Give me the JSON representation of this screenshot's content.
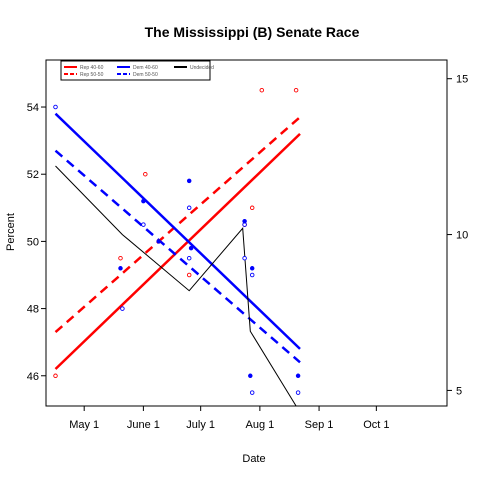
{
  "chart_data": {
    "type": "line",
    "title": "The Mississippi (B) Senate Race",
    "xlabel": "Date",
    "ylabel": "Percent",
    "x_tick_labels": [
      "May 1",
      "June 1",
      "July 1",
      "Aug 1",
      "Sep 1",
      "Oct 1"
    ],
    "x_tick_days": [
      0,
      31,
      61,
      92,
      123,
      153
    ],
    "xlim_days": [
      -20,
      190
    ],
    "ylim": [
      45.1,
      55.4
    ],
    "y_ticks": [
      46,
      48,
      50,
      52,
      54
    ],
    "y2lim": [
      4.5,
      15.6
    ],
    "y2_ticks": [
      5,
      10,
      15
    ],
    "legend_position": "top-left",
    "legend": [
      {
        "label": "Rep 40-60",
        "color": "#ff0000",
        "dash": "solid"
      },
      {
        "label": "Rep 50-50",
        "color": "#ff0000",
        "dash": "dashed"
      },
      {
        "label": "Dem 40-60",
        "color": "#0000ff",
        "dash": "solid"
      },
      {
        "label": "Dem 50-50",
        "color": "#0000ff",
        "dash": "dashed"
      },
      {
        "label": "Undecided",
        "color": "#000000",
        "dash": "solid"
      }
    ],
    "series": [
      {
        "name": "Rep 40-60",
        "axis": "left",
        "color": "#ff0000",
        "dash": "solid",
        "width": 2.5,
        "x": [
          -15,
          113
        ],
        "y": [
          46.2,
          53.2
        ]
      },
      {
        "name": "Rep 50-50",
        "axis": "left",
        "color": "#ff0000",
        "dash": "dashed",
        "width": 2.5,
        "x": [
          -15,
          113
        ],
        "y": [
          47.3,
          53.7
        ]
      },
      {
        "name": "Dem 40-60",
        "axis": "left",
        "color": "#0000ff",
        "dash": "solid",
        "width": 2.5,
        "x": [
          -15,
          113
        ],
        "y": [
          53.8,
          46.8
        ]
      },
      {
        "name": "Dem 50-50",
        "axis": "left",
        "color": "#0000ff",
        "dash": "dashed",
        "width": 2.5,
        "x": [
          -15,
          113
        ],
        "y": [
          52.7,
          46.4
        ]
      },
      {
        "name": "Undecided",
        "axis": "right",
        "color": "#000000",
        "dash": "solid",
        "width": 1,
        "x": [
          -15,
          20,
          55,
          83,
          87,
          111
        ],
        "y": [
          12.2,
          10.0,
          8.2,
          10.2,
          6.9,
          4.5
        ]
      }
    ],
    "points": [
      {
        "color": "#ff0000",
        "filled": false,
        "x": [
          -15,
          32,
          93,
          111,
          84,
          88,
          55,
          19,
          39
        ],
        "y": [
          46.0,
          52.0,
          54.5,
          54.5,
          50.5,
          51.0,
          49.0,
          49.5,
          50.0
        ]
      },
      {
        "color": "#0000ff",
        "filled": false,
        "x": [
          -15,
          31,
          20,
          55,
          84,
          88,
          112,
          88,
          84,
          55
        ],
        "y": [
          54.0,
          50.5,
          48.0,
          51.0,
          49.5,
          49.0,
          45.5,
          45.5,
          50.5,
          49.5
        ]
      },
      {
        "color": "#0000ff",
        "filled": true,
        "x": [
          19,
          31,
          55,
          84,
          88,
          87,
          112,
          39,
          56
        ],
        "y": [
          49.2,
          51.2,
          51.8,
          50.6,
          49.2,
          46.0,
          46.0,
          50.0,
          49.8
        ]
      }
    ]
  }
}
